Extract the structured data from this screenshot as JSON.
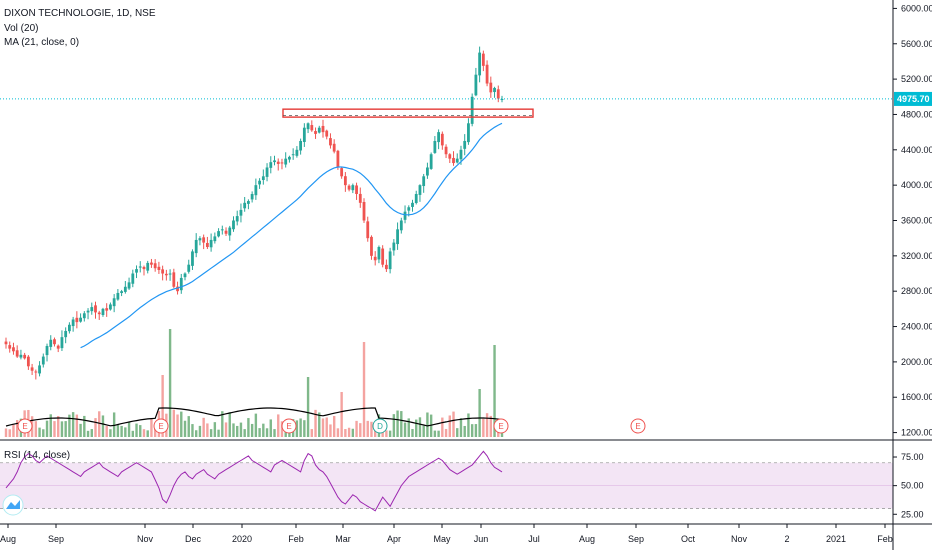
{
  "header": {
    "symbol_line": "DIXON TECHNOLOGIE, 1D, NSE",
    "volume_line": "Vol (20)",
    "ma_line": "MA (21, close, 0)",
    "rsi_line": "RSI (14, close)"
  },
  "colors": {
    "up": "#26a69a",
    "down": "#ef5350",
    "ma": "#2196f3",
    "rsi_line": "#9c27b0",
    "rsi_band": "#f3e5f5",
    "price_line": "#00bcd4",
    "price_tag": "#00bcd4",
    "resistance": "#e53935",
    "vol_up": "#7fb88a",
    "vol_down": "#f4a3a0",
    "vol_ma": "#000000"
  },
  "chart_data": [
    {
      "type": "candlestick",
      "title": "DIXON TECHNOLOGIE, 1D, NSE",
      "ylim": [
        1150,
        6050
      ],
      "y_ticks": [
        "6000.00",
        "5600.00",
        "5200.00",
        "4800.00",
        "4400.00",
        "4000.00",
        "3600.00",
        "3200.00",
        "2800.00",
        "2400.00",
        "2000.00",
        "1600.00",
        "1200.00"
      ],
      "x_ticks": [
        "Aug",
        "Sep",
        "Nov",
        "Dec",
        "2020",
        "Feb",
        "Mar",
        "Apr",
        "May",
        "Jun",
        "Jul",
        "Aug",
        "Sep",
        "Oct",
        "Nov",
        "2",
        "2021",
        "Feb"
      ],
      "last_price": 4975.7,
      "last_price_label": "4975.70",
      "resistance_zone": [
        4770,
        4860
      ],
      "dashed_level": 4790,
      "close_series": [
        2200,
        2150,
        2120,
        2060,
        2080,
        2040,
        1950,
        1900,
        1880,
        1960,
        2060,
        2180,
        2250,
        2200,
        2150,
        2280,
        2350,
        2420,
        2480,
        2450,
        2500,
        2550,
        2580,
        2620,
        2560,
        2540,
        2600,
        2580,
        2650,
        2720,
        2780,
        2800,
        2850,
        2900,
        3000,
        3050,
        3080,
        3050,
        3120,
        3100,
        3060,
        3040,
        3000,
        2980,
        3000,
        2850,
        2800,
        2950,
        3000,
        3100,
        3250,
        3380,
        3400,
        3350,
        3300,
        3380,
        3420,
        3480,
        3500,
        3450,
        3520,
        3600,
        3650,
        3720,
        3800,
        3820,
        3900,
        4000,
        4050,
        4100,
        4200,
        4260,
        4280,
        4240,
        4250,
        4300,
        4320,
        4350,
        4400,
        4500,
        4650,
        4700,
        4620,
        4580,
        4650,
        4600,
        4550,
        4450,
        4380,
        4200,
        4100,
        4000,
        3950,
        4000,
        3900,
        3800,
        3600,
        3400,
        3200,
        3150,
        3300,
        3100,
        3050,
        3250,
        3350,
        3500,
        3600,
        3700,
        3750,
        3800,
        3900,
        4000,
        4100,
        4200,
        4350,
        4500,
        4600,
        4450,
        4350,
        4300,
        4250,
        4300,
        4400,
        4500,
        4700,
        5000,
        5250,
        5500,
        5350,
        5150,
        5050,
        5100,
        4980,
        4975
      ],
      "ma_series": [
        null,
        null,
        null,
        null,
        null,
        null,
        null,
        null,
        null,
        null,
        null,
        null,
        null,
        null,
        null,
        null,
        null,
        null,
        null,
        null,
        2160,
        2180,
        2205,
        2235,
        2260,
        2280,
        2305,
        2330,
        2360,
        2390,
        2420,
        2450,
        2480,
        2510,
        2545,
        2580,
        2615,
        2645,
        2675,
        2705,
        2730,
        2755,
        2775,
        2795,
        2810,
        2825,
        2835,
        2850,
        2865,
        2885,
        2910,
        2940,
        2970,
        3000,
        3030,
        3060,
        3090,
        3120,
        3150,
        3180,
        3210,
        3240,
        3275,
        3310,
        3345,
        3380,
        3415,
        3450,
        3485,
        3520,
        3555,
        3590,
        3625,
        3660,
        3695,
        3730,
        3765,
        3800,
        3835,
        3875,
        3920,
        3965,
        4005,
        4045,
        4085,
        4120,
        4150,
        4175,
        4195,
        4205,
        4205,
        4200,
        4190,
        4180,
        4160,
        4135,
        4100,
        4060,
        4010,
        3955,
        3905,
        3850,
        3795,
        3750,
        3715,
        3690,
        3675,
        3665,
        3665,
        3670,
        3685,
        3710,
        3745,
        3790,
        3845,
        3905,
        3970,
        4030,
        4090,
        4140,
        4185,
        4225,
        4265,
        4305,
        4350,
        4400,
        4455,
        4515,
        4560,
        4595,
        4625,
        4655,
        4680,
        4700
      ]
    },
    {
      "type": "bar",
      "title": "Vol (20)",
      "event_markers": [
        "E",
        "E",
        "E",
        "D",
        "E",
        "E"
      ]
    },
    {
      "type": "line",
      "title": "RSI (14, close)",
      "ylim": [
        20,
        82
      ],
      "y_ticks": [
        "75.00",
        "50.00",
        "25.00"
      ],
      "band": [
        30,
        70
      ],
      "values": [
        48,
        52,
        56,
        62,
        70,
        75,
        78,
        76,
        72,
        70,
        73,
        76,
        74,
        72,
        70,
        68,
        66,
        64,
        62,
        60,
        58,
        62,
        64,
        66,
        68,
        70,
        66,
        64,
        62,
        60,
        58,
        62,
        64,
        66,
        68,
        70,
        68,
        66,
        64,
        62,
        55,
        48,
        38,
        35,
        42,
        50,
        56,
        60,
        62,
        58,
        56,
        60,
        62,
        64,
        60,
        58,
        56,
        60,
        62,
        64,
        66,
        68,
        70,
        72,
        74,
        76,
        72,
        70,
        68,
        66,
        64,
        62,
        68,
        70,
        72,
        70,
        68,
        66,
        64,
        62,
        72,
        78,
        76,
        68,
        64,
        62,
        58,
        52,
        46,
        40,
        36,
        34,
        38,
        42,
        40,
        36,
        34,
        32,
        30,
        28,
        34,
        40,
        36,
        32,
        38,
        44,
        50,
        54,
        58,
        60,
        62,
        64,
        66,
        68,
        70,
        72,
        74,
        72,
        68,
        64,
        62,
        60,
        62,
        64,
        66,
        68,
        72,
        76,
        80,
        76,
        70,
        66,
        64,
        62
      ]
    }
  ]
}
